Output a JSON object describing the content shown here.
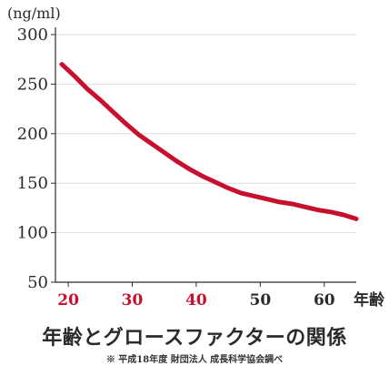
{
  "chart_data": {
    "type": "line",
    "title": "年齢とグロースファクターの関係",
    "note": "※ 平成18年度 財団法人 成長科学協会調べ",
    "ylabel": "(ng/ml)",
    "xlabel": "年齢",
    "xlim": [
      18,
      65
    ],
    "ylim": [
      50,
      300
    ],
    "x_ticks": [
      20,
      30,
      40,
      50,
      60
    ],
    "x_tick_highlight": [
      20,
      30,
      40
    ],
    "y_ticks": [
      50,
      100,
      150,
      200,
      250,
      300
    ],
    "series": [
      {
        "color": "#c8102e",
        "x": [
          19,
          21,
          23,
          25,
          27,
          29,
          31,
          33,
          35,
          37,
          39,
          41,
          43,
          45,
          47,
          49,
          51,
          53,
          55,
          57,
          59,
          61,
          63,
          65
        ],
        "y": [
          270,
          258,
          245,
          234,
          222,
          210,
          199,
          190,
          181,
          172,
          164,
          157,
          151,
          145,
          140,
          137,
          134,
          131,
          129,
          126,
          123,
          121,
          118,
          114
        ]
      }
    ],
    "colors": {
      "highlight_tick": "#c8102e",
      "normal_tick": "#2b2b2b",
      "grid": "#dddddd",
      "axis": "#2b2b2b"
    }
  }
}
